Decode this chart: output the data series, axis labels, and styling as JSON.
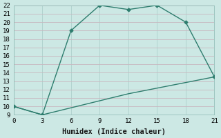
{
  "line1_x": [
    0,
    3,
    6,
    9,
    12,
    15,
    18,
    21
  ],
  "line1_y": [
    10,
    9,
    19,
    22,
    21.5,
    22,
    20,
    13.5
  ],
  "line2_x": [
    0,
    3,
    12,
    21
  ],
  "line2_y": [
    10,
    9,
    11.5,
    13.5
  ],
  "line_color": "#2e7d6e",
  "bg_color": "#cce8e4",
  "grid_color": "#aed0cb",
  "xlabel": "Humidex (Indice chaleur)",
  "xlim": [
    0,
    21
  ],
  "ylim": [
    9,
    22
  ],
  "xticks": [
    0,
    3,
    6,
    9,
    12,
    15,
    18,
    21
  ],
  "yticks": [
    9,
    10,
    11,
    12,
    13,
    14,
    15,
    16,
    17,
    18,
    19,
    20,
    21,
    22
  ],
  "marker": "D",
  "marker_size": 2.5,
  "line_width": 1.0,
  "xlabel_fontsize": 7.5,
  "tick_fontsize": 6.5
}
